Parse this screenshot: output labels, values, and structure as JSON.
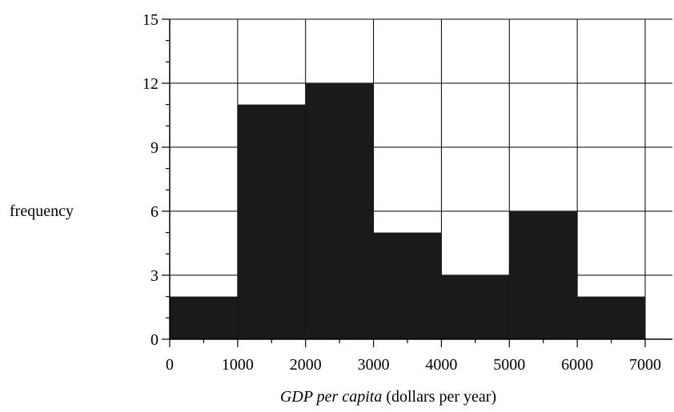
{
  "chart_data": {
    "type": "bar",
    "subtype": "histogram",
    "bins": [
      {
        "start": 0,
        "end": 1000,
        "value": 2
      },
      {
        "start": 1000,
        "end": 2000,
        "value": 11
      },
      {
        "start": 2000,
        "end": 3000,
        "value": 12
      },
      {
        "start": 3000,
        "end": 4000,
        "value": 5
      },
      {
        "start": 4000,
        "end": 5000,
        "value": 3
      },
      {
        "start": 5000,
        "end": 6000,
        "value": 6
      },
      {
        "start": 6000,
        "end": 7000,
        "value": 2
      }
    ],
    "xlabel_italic": "GDP per capita",
    "xlabel_rest": " (dollars per year)",
    "ylabel": "frequency",
    "xlim": [
      0,
      7000
    ],
    "ylim": [
      0,
      15
    ],
    "xticks": [
      0,
      1000,
      2000,
      3000,
      4000,
      5000,
      6000,
      7000
    ],
    "yticks": [
      0,
      3,
      6,
      9,
      12,
      15
    ],
    "grid": true,
    "colors": {
      "bar": "#1a1a1a",
      "grid": "#000000"
    }
  }
}
